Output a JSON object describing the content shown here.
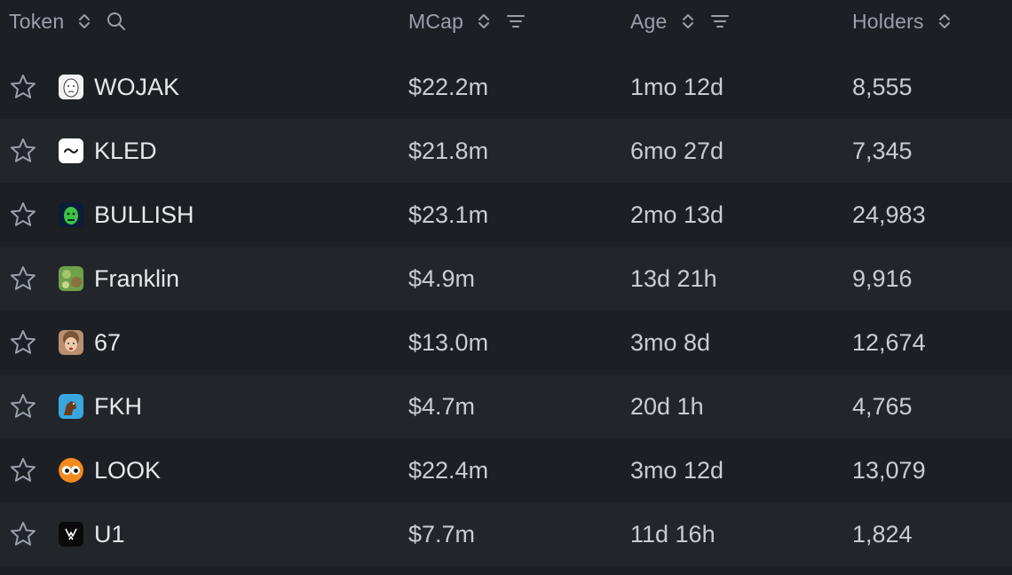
{
  "header": {
    "token_label": "Token",
    "mcap_label": "MCap",
    "age_label": "Age",
    "holders_label": "Holders"
  },
  "rows": [
    {
      "name": "WOJAK",
      "mcap": "$22.2m",
      "age": "1mo 12d",
      "holders": "8,555",
      "logo_icon": "wojak-face-icon"
    },
    {
      "name": "KLED",
      "mcap": "$21.8m",
      "age": "6mo 27d",
      "holders": "7,345",
      "logo_icon": "kled-wave-icon"
    },
    {
      "name": "BULLISH",
      "mcap": "$23.1m",
      "age": "2mo 13d",
      "holders": "24,983",
      "logo_icon": "bullish-green-face-icon"
    },
    {
      "name": "Franklin",
      "mcap": "$4.9m",
      "age": "13d 21h",
      "holders": "9,916",
      "logo_icon": "franklin-icon"
    },
    {
      "name": "67",
      "mcap": "$13.0m",
      "age": "3mo 8d",
      "holders": "12,674",
      "logo_icon": "kid-face-icon"
    },
    {
      "name": "FKH",
      "mcap": "$4.7m",
      "age": "20d 1h",
      "holders": "4,765",
      "logo_icon": "fkh-horse-icon"
    },
    {
      "name": "LOOK",
      "mcap": "$22.4m",
      "age": "3mo 12d",
      "holders": "13,079",
      "logo_icon": "look-eyes-icon"
    },
    {
      "name": "U1",
      "mcap": "$7.7m",
      "age": "11d 16h",
      "holders": "1,824",
      "logo_icon": "u1-black-icon"
    }
  ],
  "colors": {
    "background": "#1c1f24",
    "row_alt": "#22262b",
    "header_text": "#9aa0ab",
    "cell_text": "#c9ccd1",
    "name_text": "#e6e8eb"
  }
}
